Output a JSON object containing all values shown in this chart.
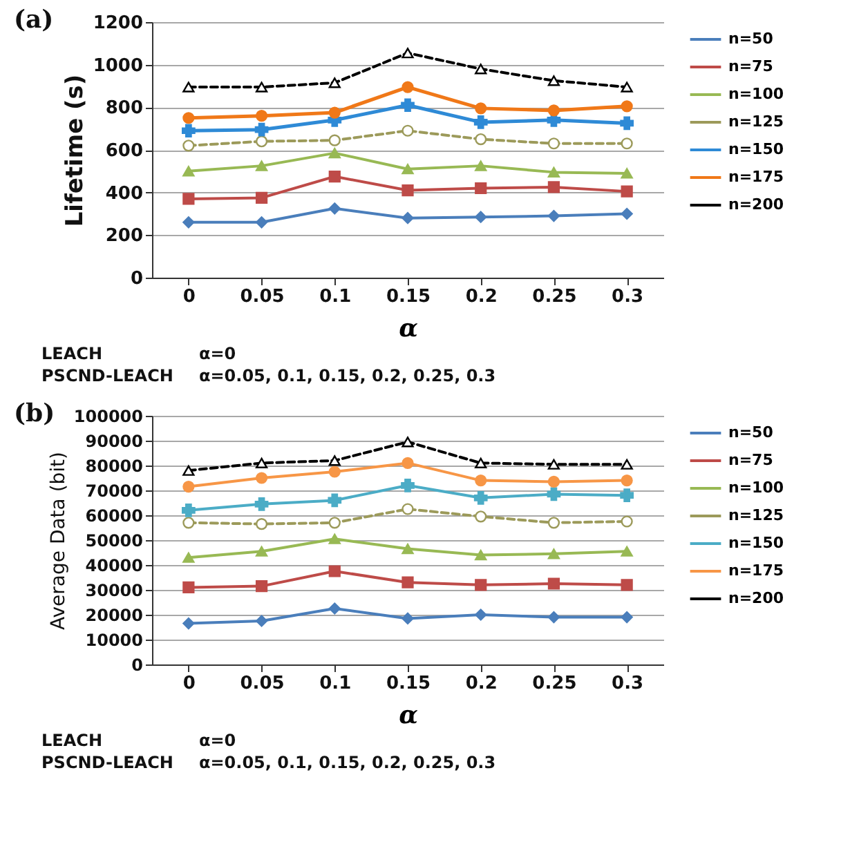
{
  "chart_data": [
    {
      "type": "line",
      "title": "(a)",
      "xlabel": "α",
      "ylabel": "Lifetime (s)",
      "categories": [
        "0",
        "0.05",
        "0.1",
        "0.15",
        "0.2",
        "0.25",
        "0.3"
      ],
      "ylim": [
        0,
        1200
      ],
      "yticks": [
        0,
        200,
        400,
        600,
        800,
        1000,
        1200
      ],
      "grid": "y",
      "legend": "right",
      "series": [
        {
          "name": "n=50",
          "color": "#4a7ebb",
          "marker": "diamond",
          "line_style": "solid",
          "values": [
            260,
            260,
            325,
            280,
            285,
            290,
            300
          ]
        },
        {
          "name": "n=75",
          "color": "#be4b48",
          "marker": "square",
          "line_style": "solid",
          "values": [
            370,
            375,
            475,
            410,
            420,
            425,
            405
          ]
        },
        {
          "name": "n=100",
          "color": "#98b954",
          "marker": "triangle",
          "line_style": "solid",
          "values": [
            500,
            525,
            585,
            510,
            525,
            495,
            490
          ]
        },
        {
          "name": "n=125",
          "color": "#9c9a5a",
          "marker": "circle",
          "line_style": "dashed",
          "values": [
            620,
            640,
            645,
            690,
            650,
            630,
            630
          ]
        },
        {
          "name": "n=150",
          "color": "#2e8ad6",
          "marker": "cross",
          "line_style": "solid",
          "values": [
            690,
            695,
            740,
            810,
            730,
            740,
            725
          ]
        },
        {
          "name": "n=175",
          "color": "#f07818",
          "marker": "circle",
          "line_style": "solid",
          "values": [
            750,
            760,
            775,
            895,
            795,
            785,
            805
          ]
        },
        {
          "name": "n=200",
          "color": "#000000",
          "marker": "triangle",
          "line_style": "dashed",
          "values": [
            895,
            895,
            915,
            1055,
            980,
            925,
            895
          ]
        }
      ],
      "annotations": [
        "LEACH",
        "α=0",
        "PSCND-LEACH",
        "α=0.05, 0.1, 0.15, 0.2, 0.25, 0.3"
      ]
    },
    {
      "type": "line",
      "title": "(b)",
      "xlabel": "α",
      "ylabel": "Average Data (bit)",
      "categories": [
        "0",
        "0.05",
        "0.1",
        "0.15",
        "0.2",
        "0.25",
        "0.3"
      ],
      "ylim": [
        0,
        100000
      ],
      "yticks": [
        0,
        10000,
        20000,
        30000,
        40000,
        50000,
        60000,
        70000,
        80000,
        90000,
        100000
      ],
      "grid": "y",
      "legend": "right",
      "series": [
        {
          "name": "n=50",
          "color": "#4a7ebb",
          "marker": "diamond",
          "line_style": "solid",
          "values": [
            16500,
            17500,
            22500,
            18500,
            20000,
            19000,
            19000
          ]
        },
        {
          "name": "n=75",
          "color": "#be4b48",
          "marker": "square",
          "line_style": "solid",
          "values": [
            31000,
            31500,
            37500,
            33000,
            32000,
            32500,
            32000
          ]
        },
        {
          "name": "n=100",
          "color": "#98b954",
          "marker": "triangle",
          "line_style": "solid",
          "values": [
            43000,
            45500,
            50500,
            46500,
            44000,
            44500,
            45500
          ]
        },
        {
          "name": "n=125",
          "color": "#9c9a5a",
          "marker": "circle",
          "line_style": "dashed",
          "values": [
            57000,
            56500,
            57000,
            62500,
            59500,
            57000,
            57500
          ]
        },
        {
          "name": "n=150",
          "color": "#4bacc6",
          "marker": "cross",
          "line_style": "solid",
          "values": [
            62000,
            64500,
            66000,
            72000,
            67000,
            68500,
            68000
          ]
        },
        {
          "name": "n=175",
          "color": "#f79646",
          "marker": "circle",
          "line_style": "solid",
          "values": [
            71500,
            75000,
            77500,
            81000,
            74000,
            73500,
            74000
          ]
        },
        {
          "name": "n=200",
          "color": "#000000",
          "marker": "triangle",
          "line_style": "dashed",
          "values": [
            78000,
            81000,
            82000,
            89500,
            81000,
            80500,
            80500
          ]
        }
      ],
      "annotations": [
        "LEACH",
        "α=0",
        "PSCND-LEACH",
        "α=0.05, 0.1, 0.15, 0.2, 0.25, 0.3"
      ]
    }
  ]
}
